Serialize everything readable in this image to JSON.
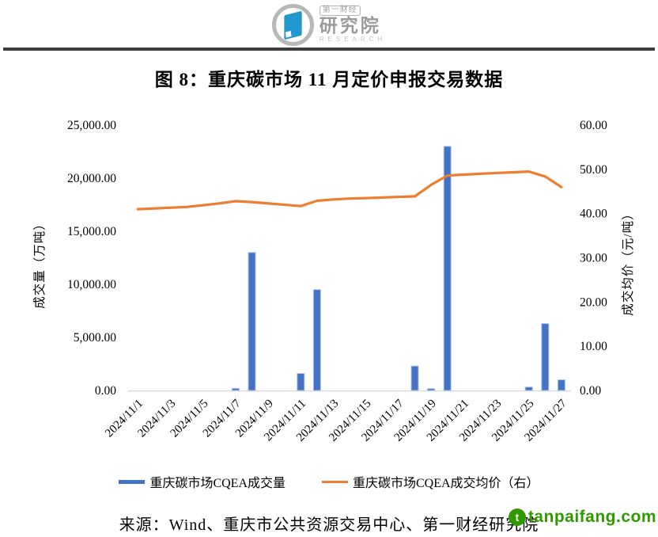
{
  "header": {
    "logo": {
      "brand_top": "第一财经",
      "brand_main": "研究院",
      "brand_sub": "RESEARCH",
      "accent_color": "#2196cf",
      "ring_color": "#b7b7b7"
    }
  },
  "title": "图 8：重庆碳市场 11 月定价申报交易数据",
  "chart_data": {
    "type": "combo-bar-line",
    "title": "图 8：重庆碳市场 11 月定价申报交易数据",
    "colors": {
      "bar": "#4472C4",
      "bar_edge": "#A9C1E8",
      "line": "#ED7D31",
      "axis_line": "#D9D9D9"
    },
    "grid": "off",
    "legend_position": "bottom",
    "left_axis": {
      "title": "成交量（万吨）",
      "min": 0,
      "max": 25000,
      "step": 5000,
      "tick_labels": [
        "0.00",
        "5,000.00",
        "10,000.00",
        "15,000.00",
        "20,000.00",
        "25,000.00"
      ]
    },
    "right_axis": {
      "title": "成交均价（元/吨）",
      "min": 0,
      "max": 60,
      "step": 10,
      "tick_labels": [
        "0.00",
        "10.00",
        "20.00",
        "30.00",
        "40.00",
        "50.00",
        "60.00"
      ]
    },
    "x_axis": {
      "days_in_axis": 27,
      "first_day": "2024/11/1",
      "last_day": "2024/11/27",
      "tick_labels": [
        {
          "label": "2024/11/1",
          "day": 1
        },
        {
          "label": "2024/11/3",
          "day": 3
        },
        {
          "label": "2024/11/5",
          "day": 5
        },
        {
          "label": "2024/11/7",
          "day": 7
        },
        {
          "label": "2024/11/9",
          "day": 9
        },
        {
          "label": "2024/11/11",
          "day": 11
        },
        {
          "label": "2024/11/13",
          "day": 13
        },
        {
          "label": "2024/11/15",
          "day": 15
        },
        {
          "label": "2024/11/17",
          "day": 17
        },
        {
          "label": "2024/11/19",
          "day": 19
        },
        {
          "label": "2024/11/21",
          "day": 21
        },
        {
          "label": "2024/11/23",
          "day": 23
        },
        {
          "label": "2024/11/25",
          "day": 25
        },
        {
          "label": "2024/11/27",
          "day": 27
        }
      ]
    },
    "series": [
      {
        "name": "重庆碳市场CQEA成交量",
        "type": "bar",
        "axis": "left",
        "points": [
          {
            "date": "2024/11/7",
            "day": 7,
            "value": 200
          },
          {
            "date": "2024/11/8",
            "day": 8,
            "value": 13000
          },
          {
            "date": "2024/11/11",
            "day": 11,
            "value": 1600
          },
          {
            "date": "2024/11/12",
            "day": 12,
            "value": 9500
          },
          {
            "date": "2024/11/18",
            "day": 18,
            "value": 2300
          },
          {
            "date": "2024/11/19",
            "day": 19,
            "value": 170
          },
          {
            "date": "2024/11/20",
            "day": 20,
            "value": 23000
          },
          {
            "date": "2024/11/25",
            "day": 25,
            "value": 320
          },
          {
            "date": "2024/11/26",
            "day": 26,
            "value": 6300
          },
          {
            "date": "2024/11/27",
            "day": 27,
            "value": 1000
          }
        ]
      },
      {
        "name": "重庆碳市场CQEA成交均价（右）",
        "type": "line",
        "axis": "right",
        "points": [
          {
            "date": "2024/11/1",
            "day": 1,
            "value": 41.0
          },
          {
            "date": "2024/11/4",
            "day": 4,
            "value": 41.5
          },
          {
            "date": "2024/11/5",
            "day": 5,
            "value": 41.9
          },
          {
            "date": "2024/11/6",
            "day": 6,
            "value": 42.3
          },
          {
            "date": "2024/11/7",
            "day": 7,
            "value": 42.8
          },
          {
            "date": "2024/11/8",
            "day": 8,
            "value": 42.6
          },
          {
            "date": "2024/11/11",
            "day": 11,
            "value": 41.7
          },
          {
            "date": "2024/11/12",
            "day": 12,
            "value": 42.9
          },
          {
            "date": "2024/11/13",
            "day": 13,
            "value": 43.2
          },
          {
            "date": "2024/11/14",
            "day": 14,
            "value": 43.4
          },
          {
            "date": "2024/11/15",
            "day": 15,
            "value": 43.5
          },
          {
            "date": "2024/11/18",
            "day": 18,
            "value": 43.9
          },
          {
            "date": "2024/11/19",
            "day": 19,
            "value": 46.5
          },
          {
            "date": "2024/11/20",
            "day": 20,
            "value": 48.6
          },
          {
            "date": "2024/11/21",
            "day": 21,
            "value": 48.8
          },
          {
            "date": "2024/11/22",
            "day": 22,
            "value": 49.0
          },
          {
            "date": "2024/11/25",
            "day": 25,
            "value": 49.5
          },
          {
            "date": "2024/11/26",
            "day": 26,
            "value": 48.4
          },
          {
            "date": "2024/11/27",
            "day": 27,
            "value": 46.0
          }
        ]
      }
    ]
  },
  "legend": {
    "items": [
      {
        "label": "重庆碳市场CQEA成交量",
        "swatch": "bar",
        "color": "#4472C4"
      },
      {
        "label": "重庆碳市场CQEA成交均价（右）",
        "swatch": "line",
        "color": "#ED7D31"
      }
    ]
  },
  "footer": {
    "source": "来源：Wind、重庆市公共资源交易中心、第一财经研究院"
  },
  "watermark": {
    "text": "tanpaifang.com",
    "logo_letter": "t",
    "color": "#2f9a00"
  }
}
